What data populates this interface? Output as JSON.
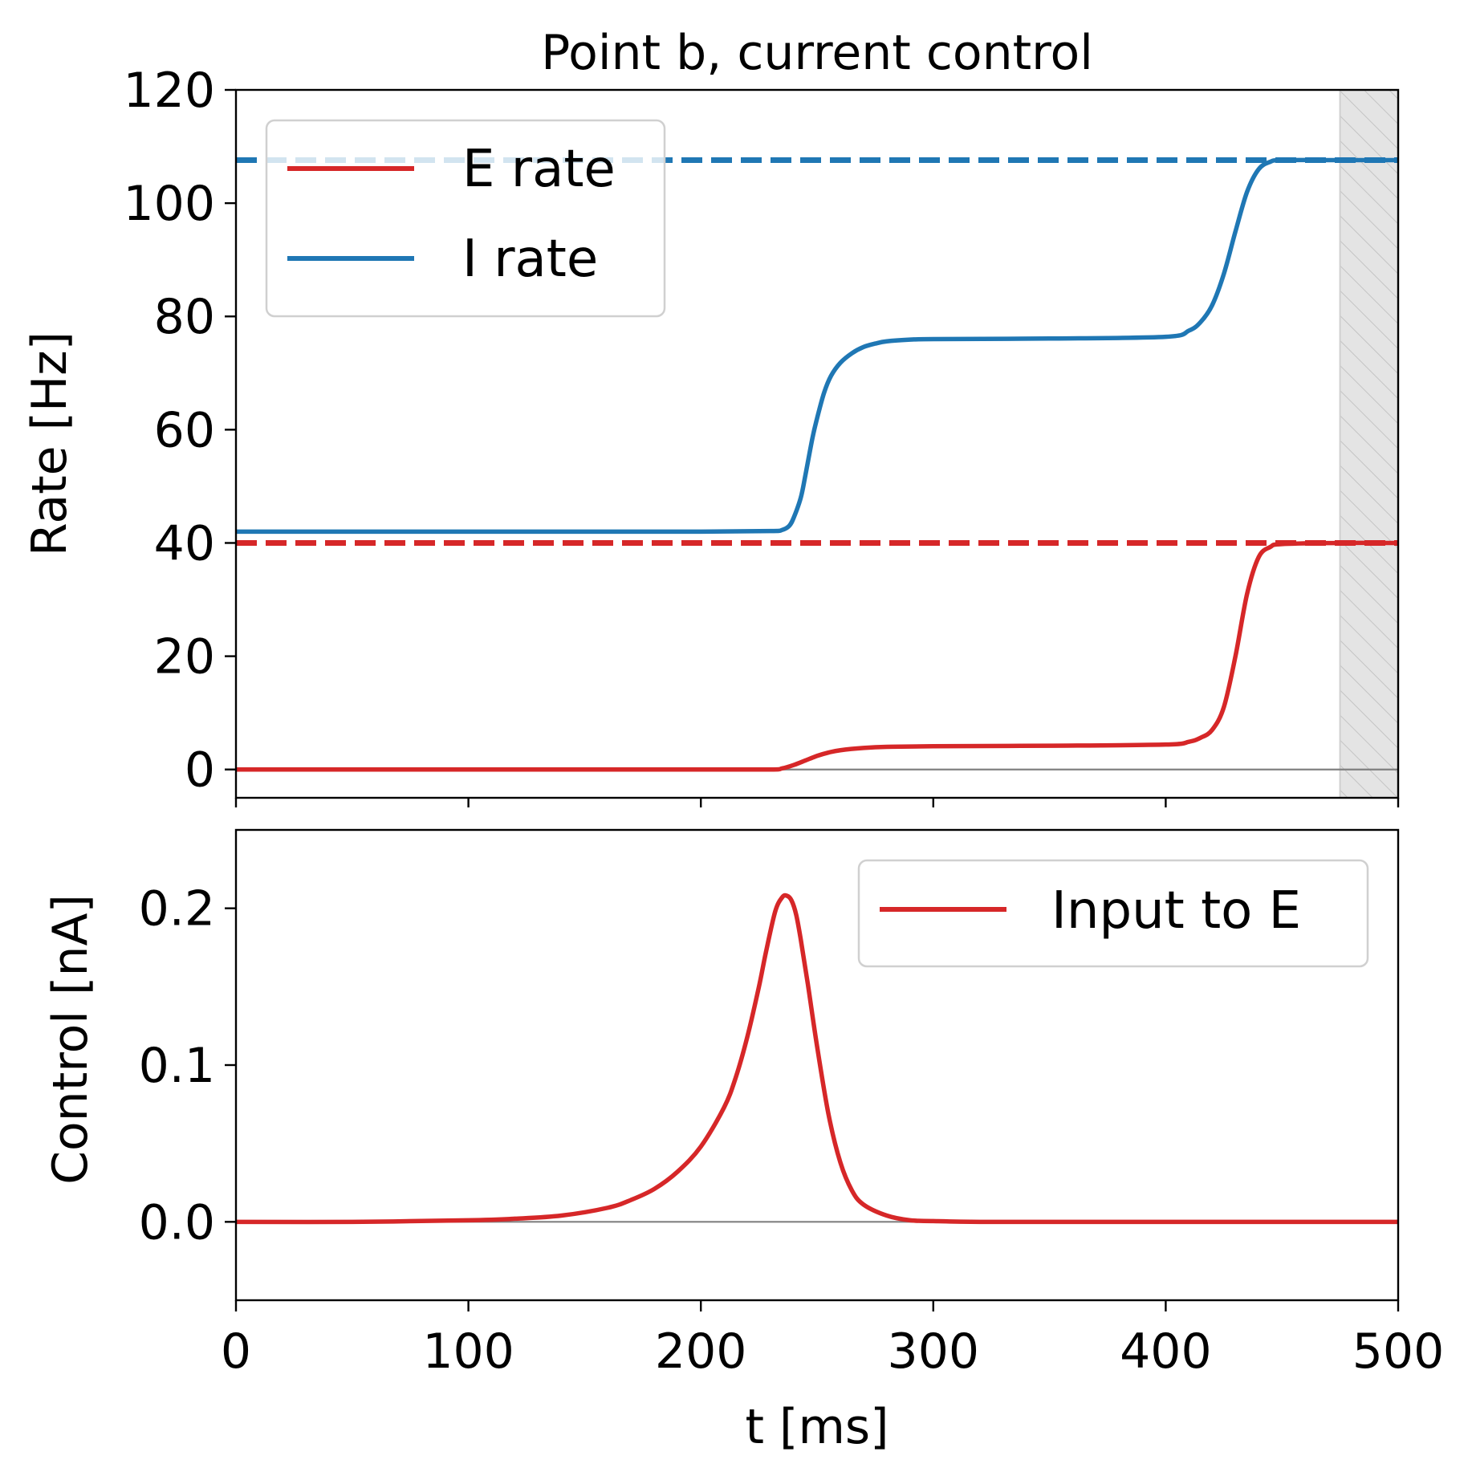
{
  "chart_data": [
    {
      "panel": "top",
      "type": "line",
      "title": "Point b, current control",
      "xlabel": "",
      "ylabel": "Rate [Hz]",
      "xlim": [
        0,
        500
      ],
      "ylim": [
        -5,
        120
      ],
      "yticks": [
        0,
        20,
        40,
        60,
        80,
        100,
        120
      ],
      "ytick_labels": [
        "0",
        "20",
        "40",
        "60",
        "80",
        "100",
        "120"
      ],
      "legend_location": "upper-left",
      "reference_line": 0,
      "shaded_region": [
        475,
        500
      ],
      "series": [
        {
          "name": "E rate",
          "color": "#d62728",
          "x": [
            0,
            50,
            100,
            150,
            200,
            230,
            235,
            240,
            245,
            250,
            255,
            260,
            270,
            280,
            300,
            350,
            400,
            410,
            415,
            420,
            425,
            430,
            435,
            440,
            445,
            450,
            475,
            500
          ],
          "y": [
            0,
            0,
            0,
            0,
            0,
            0,
            0.2,
            0.8,
            1.6,
            2.4,
            3.0,
            3.4,
            3.8,
            4.0,
            4.1,
            4.2,
            4.4,
            4.9,
            5.6,
            7.0,
            11.0,
            20.0,
            31.0,
            37.5,
            39.3,
            39.8,
            40.0,
            40.0
          ]
        },
        {
          "name": "I rate",
          "color": "#1f77b4",
          "x": [
            0,
            50,
            100,
            150,
            200,
            230,
            235,
            238,
            240,
            243,
            245,
            248,
            250,
            253,
            256,
            260,
            265,
            270,
            275,
            280,
            290,
            300,
            350,
            400,
            410,
            415,
            420,
            425,
            430,
            435,
            440,
            445,
            450,
            475,
            500
          ],
          "y": [
            42,
            42,
            42,
            42,
            42,
            42.1,
            42.3,
            43.0,
            44.5,
            48.0,
            52.0,
            58.5,
            62.0,
            66.5,
            69.5,
            71.8,
            73.5,
            74.6,
            75.2,
            75.6,
            75.9,
            76.0,
            76.1,
            76.4,
            77.5,
            79.0,
            82.0,
            87.5,
            95.0,
            102.0,
            106.0,
            107.3,
            107.6,
            107.6,
            107.6
          ]
        }
      ],
      "target_lines": [
        {
          "value": 40,
          "color": "#d62728",
          "style": "dashed"
        },
        {
          "value": 107.6,
          "color": "#1f77b4",
          "style": "dashed"
        }
      ]
    },
    {
      "panel": "bottom",
      "type": "line",
      "title": "",
      "xlabel": "t [ms]",
      "ylabel": "Control [nA]",
      "xlim": [
        0,
        500
      ],
      "ylim": [
        -0.05,
        0.25
      ],
      "xticks": [
        0,
        100,
        200,
        300,
        400,
        500
      ],
      "xtick_labels": [
        "0",
        "100",
        "200",
        "300",
        "400",
        "500"
      ],
      "yticks": [
        0.0,
        0.1,
        0.2
      ],
      "ytick_labels": [
        "0.0",
        "0.1",
        "0.2"
      ],
      "legend_location": "upper-right",
      "reference_line": 0,
      "series": [
        {
          "name": "Input to E",
          "color": "#d62728",
          "x": [
            0,
            50,
            100,
            120,
            140,
            160,
            170,
            180,
            190,
            200,
            210,
            215,
            220,
            225,
            228,
            232,
            235,
            237,
            239,
            241,
            243,
            246,
            250,
            255,
            260,
            265,
            270,
            280,
            290,
            300,
            320,
            350,
            400,
            450,
            500
          ],
          "y": [
            0,
            0,
            0.001,
            0.002,
            0.004,
            0.009,
            0.014,
            0.021,
            0.032,
            0.048,
            0.073,
            0.092,
            0.118,
            0.15,
            0.172,
            0.198,
            0.207,
            0.208,
            0.205,
            0.196,
            0.18,
            0.152,
            0.112,
            0.068,
            0.038,
            0.02,
            0.011,
            0.004,
            0.001,
            0.0005,
            0,
            0,
            0,
            0,
            0
          ]
        }
      ]
    }
  ]
}
